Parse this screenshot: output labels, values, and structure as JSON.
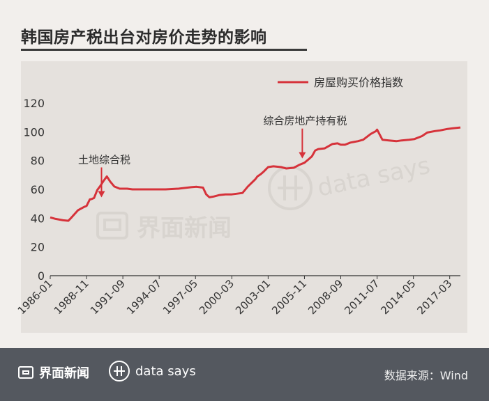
{
  "header": {
    "title": "韩国房产税出台对房价走势的影响"
  },
  "watermark": {
    "brand": "界面新闻",
    "tag": "data says"
  },
  "footer": {
    "brand": "界面新闻",
    "tag": "data says",
    "source": "数据来源：Wind"
  },
  "colors": {
    "line": "#d6323a",
    "panel": "#e5e1dd",
    "footer": "#54585f"
  },
  "chart_data": {
    "type": "line",
    "legend_position": "top-right",
    "grid": false,
    "ylim": [
      0,
      120
    ],
    "yticks": [
      0,
      20,
      40,
      60,
      80,
      100,
      120
    ],
    "xlim": [
      "1986-01",
      "2018-01"
    ],
    "xtick_labels": [
      "1986-01",
      "1988-11",
      "1991-09",
      "1994-07",
      "1997-05",
      "2000-03",
      "2003-01",
      "2005-11",
      "2008-09",
      "2011-07",
      "2014-05",
      "2017-03"
    ],
    "series": [
      {
        "name": "房屋购买价格指数",
        "color": "#d6323a",
        "x": [
          "1986-01",
          "1986-06",
          "1987-01",
          "1987-06",
          "1987-09",
          "1988-03",
          "1988-08",
          "1988-11",
          "1989-02",
          "1989-04",
          "1989-06",
          "1989-09",
          "1989-12",
          "1990-03",
          "1990-06",
          "1990-09",
          "1991-01",
          "1991-06",
          "1992-01",
          "1992-06",
          "1993-01",
          "1994-01",
          "1995-01",
          "1996-01",
          "1997-01",
          "1997-06",
          "1997-12",
          "1998-03",
          "1998-06",
          "1998-10",
          "1999-03",
          "1999-09",
          "2000-03",
          "2001-01",
          "2001-06",
          "2002-01",
          "2002-03",
          "2002-06",
          "2002-09",
          "2003-01",
          "2003-06",
          "2004-01",
          "2004-06",
          "2005-01",
          "2005-06",
          "2005-11",
          "2006-03",
          "2006-06",
          "2006-09",
          "2006-12",
          "2007-06",
          "2008-01",
          "2008-06",
          "2008-09",
          "2009-01",
          "2009-06",
          "2010-01",
          "2010-06",
          "2011-01",
          "2011-06",
          "2011-07",
          "2011-12",
          "2012-06",
          "2013-01",
          "2013-06",
          "2014-01",
          "2014-06",
          "2015-01",
          "2015-06",
          "2016-01",
          "2016-06",
          "2017-01",
          "2017-06",
          "2018-01"
        ],
        "y": [
          40.5,
          39.5,
          38.5,
          38.2,
          40.5,
          45.5,
          47.5,
          48.5,
          53,
          53.3,
          54,
          59.5,
          62.5,
          66,
          69,
          65.5,
          62,
          60.5,
          60.5,
          60,
          60,
          60,
          60,
          60.5,
          61.5,
          61.8,
          61.2,
          56.5,
          54.5,
          55,
          56,
          56.5,
          56.5,
          57.5,
          62,
          67,
          69,
          70.5,
          72.5,
          75.5,
          76,
          75.5,
          74.5,
          75,
          77,
          78.5,
          81,
          83,
          87,
          88,
          88.5,
          91.5,
          92,
          91,
          91,
          92.5,
          93.5,
          94.5,
          98.5,
          100.5,
          101.5,
          94.5,
          94,
          93.5,
          94,
          94.5,
          95,
          97,
          99.5,
          100.5,
          101,
          102,
          102.5,
          103
        ]
      }
    ],
    "annotations": [
      {
        "text": "土地综合税",
        "x": "1990-01",
        "y": 53
      },
      {
        "text": "综合房地产持有税",
        "x": "2005-09",
        "y": 80
      }
    ]
  }
}
